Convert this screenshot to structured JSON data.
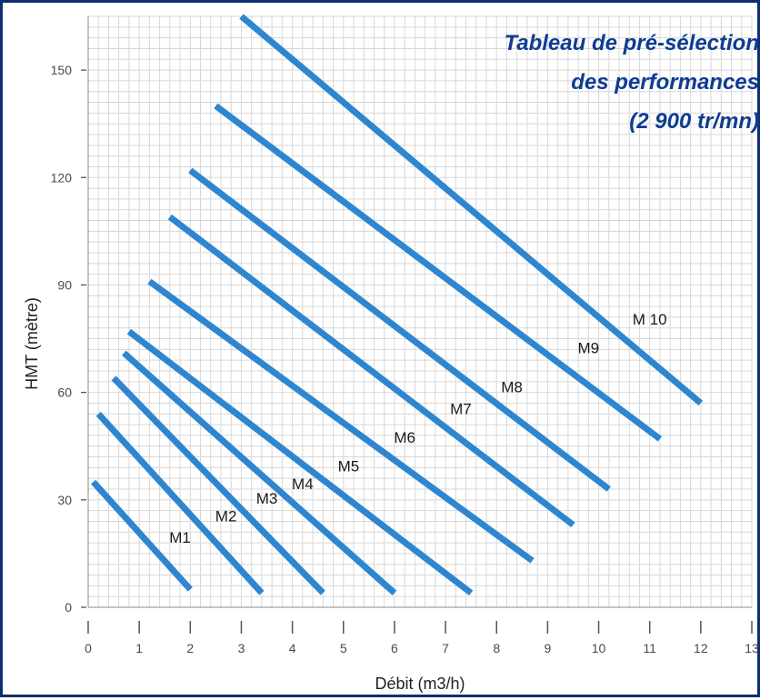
{
  "chart_data": {
    "type": "line",
    "title_lines": [
      "Tableau de pré-sélection",
      "des performances",
      "(2 900 tr/mn)"
    ],
    "xlabel": "Débit (m3/h)",
    "ylabel": "HMT (mètre)",
    "xlim": [
      0,
      13
    ],
    "ylim": [
      0,
      165
    ],
    "x_ticks": [
      "0",
      "1",
      "2",
      "3",
      "4",
      "5",
      "6",
      "7",
      "8",
      "9",
      "10",
      "11",
      "12",
      "13"
    ],
    "y_ticks": [
      "0",
      "30",
      "60",
      "90",
      "120",
      "150"
    ],
    "grid": true,
    "line_color": "#2d86cf",
    "series": [
      {
        "name": "M1",
        "x": [
          0.1,
          2.0
        ],
        "y": [
          35,
          5
        ]
      },
      {
        "name": "M2",
        "x": [
          0.2,
          3.4
        ],
        "y": [
          54,
          4
        ]
      },
      {
        "name": "M3",
        "x": [
          0.5,
          4.6
        ],
        "y": [
          64,
          4
        ]
      },
      {
        "name": "M4",
        "x": [
          0.7,
          6.0
        ],
        "y": [
          71,
          4
        ]
      },
      {
        "name": "M5",
        "x": [
          0.8,
          7.5
        ],
        "y": [
          77,
          4
        ]
      },
      {
        "name": "M6",
        "x": [
          1.2,
          8.7
        ],
        "y": [
          91,
          13
        ]
      },
      {
        "name": "M7",
        "x": [
          1.6,
          9.5
        ],
        "y": [
          109,
          23
        ]
      },
      {
        "name": "M8",
        "x": [
          2.0,
          10.2
        ],
        "y": [
          122,
          33
        ]
      },
      {
        "name": "M9",
        "x": [
          2.5,
          11.2
        ],
        "y": [
          140,
          47
        ]
      },
      {
        "name": "M 10",
        "x": [
          3.0,
          12.0
        ],
        "y": [
          165,
          57
        ]
      }
    ],
    "series_label_positions": [
      {
        "name": "M1",
        "x": 1.8,
        "y": 18
      },
      {
        "name": "M2",
        "x": 2.7,
        "y": 24
      },
      {
        "name": "M3",
        "x": 3.5,
        "y": 29
      },
      {
        "name": "M4",
        "x": 4.2,
        "y": 33
      },
      {
        "name": "M5",
        "x": 5.1,
        "y": 38
      },
      {
        "name": "M6",
        "x": 6.2,
        "y": 46
      },
      {
        "name": "M7",
        "x": 7.3,
        "y": 54
      },
      {
        "name": "M8",
        "x": 8.3,
        "y": 60
      },
      {
        "name": "M9",
        "x": 9.8,
        "y": 71
      },
      {
        "name": "M 10",
        "x": 11.0,
        "y": 79
      }
    ]
  }
}
